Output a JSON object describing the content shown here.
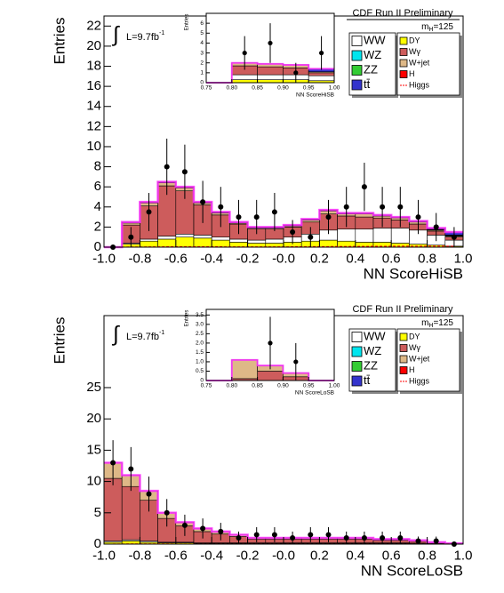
{
  "chart_data": [
    {
      "type": "histogram",
      "title": "CDF Run II Preliminary",
      "x_label": "NN ScoreHiSB",
      "y_label": "Entries",
      "lumi": {
        "integral": "∫",
        "main": "L=9.7fb",
        "sup": "-1"
      },
      "mass_label": {
        "main": "m",
        "sub": "H",
        "rest": "=125"
      },
      "bins": [
        -1,
        -0.9,
        -0.8,
        -0.7,
        -0.6,
        -0.5,
        -0.4,
        -0.3,
        -0.2,
        -0.1,
        0,
        0.1,
        0.2,
        0.3,
        0.4,
        0.5,
        0.6,
        0.7,
        0.8,
        0.9,
        1
      ],
      "xlim": [
        -1,
        1
      ],
      "ylim": [
        0,
        23
      ],
      "xticks": [
        {
          "value": -1,
          "label": "-1.0"
        },
        -0.8,
        -0.6,
        -0.4,
        -0.2,
        {
          "value": 0,
          "label": "-0.0"
        },
        0.2,
        0.4,
        0.6,
        0.8,
        {
          "value": 1,
          "label": "1.0"
        }
      ],
      "yticks": [
        0,
        2,
        4,
        6,
        8,
        10,
        12,
        14,
        16,
        18,
        20,
        22
      ],
      "stack_order": [
        4,
        0,
        5,
        6,
        1,
        2,
        3,
        7
      ],
      "series": [
        {
          "name": "WW",
          "color": "#ffffff",
          "values": [
            0,
            0.1,
            0.2,
            0.3,
            0.3,
            0.3,
            0.3,
            0.3,
            0.3,
            0.4,
            0.5,
            0.7,
            1.0,
            1.2,
            1.3,
            1.4,
            1.5,
            1.4,
            1.0,
            0.6
          ]
        },
        {
          "name": "WZ",
          "color": "#00e5ee",
          "values": [
            0,
            0.05,
            0.05,
            0.05,
            0.05,
            0.05,
            0.05,
            0.05,
            0.05,
            0.05,
            0.05,
            0.05,
            0.05,
            0.05,
            0.05,
            0.05,
            0.05,
            0.05,
            0.05,
            0.05
          ]
        },
        {
          "name": "ZZ",
          "color": "#33cc33",
          "values": [
            0,
            0.05,
            0.05,
            0.05,
            0.05,
            0.05,
            0.05,
            0.05,
            0.05,
            0.05,
            0.05,
            0.05,
            0.05,
            0.05,
            0.05,
            0.05,
            0.05,
            0.05,
            0.05,
            0.05
          ]
        },
        {
          "name": "tt̄",
          "color": "#3333cc",
          "values": [
            0,
            0,
            0,
            0,
            0,
            0,
            0,
            0,
            0,
            0,
            0,
            0,
            0,
            0,
            0,
            0,
            0,
            0,
            0.1,
            0.3
          ]
        },
        {
          "name": "DY",
          "color": "#ffff00",
          "values": [
            0,
            0.3,
            0.6,
            0.8,
            1.0,
            0.9,
            0.7,
            0.5,
            0.4,
            0.4,
            0.5,
            0.6,
            0.7,
            0.6,
            0.5,
            0.5,
            0.4,
            0.3,
            0.2,
            0.1
          ]
        },
        {
          "name": "Wγ",
          "color": "#cd5c5c",
          "values": [
            0,
            1.8,
            3.3,
            5.0,
            4.3,
            3.0,
            2.2,
            1.5,
            1.1,
            1.0,
            1.0,
            1.2,
            1.6,
            1.3,
            1.2,
            1.0,
            0.8,
            0.6,
            0.4,
            0.3
          ]
        },
        {
          "name": "W+jet",
          "color": "#deb887",
          "values": [
            0,
            0.2,
            0.3,
            0.3,
            0.3,
            0.2,
            0.2,
            0.1,
            0.1,
            0.1,
            0.1,
            0.2,
            0.3,
            0.2,
            0.3,
            0.2,
            0.2,
            0.2,
            0.1,
            0.1
          ]
        },
        {
          "name": "H",
          "color": "#ff0000",
          "values": [
            0,
            0,
            0,
            0,
            0,
            0,
            0,
            0,
            0,
            0,
            0,
            0,
            0,
            0,
            0,
            0,
            0,
            0,
            0,
            0
          ]
        },
        {
          "name": "Higgs",
          "color": "#ff0000",
          "stack": false,
          "values": [
            0,
            0.02,
            0.03,
            0.04,
            0.04,
            0.04,
            0.04,
            0.03,
            0.03,
            0.03,
            0.04,
            0.05,
            0.06,
            0.07,
            0.08,
            0.09,
            0.1,
            0.1,
            0.1,
            0.1
          ]
        }
      ],
      "points": {
        "values": [
          0,
          1,
          3.5,
          8,
          7.5,
          4.5,
          4,
          3,
          3,
          3.5,
          1.5,
          1,
          3,
          4,
          6,
          4,
          4,
          3,
          2,
          1
        ],
        "errors": [
          0,
          1,
          1.9,
          2.8,
          2.7,
          2.1,
          2,
          1.7,
          1.7,
          1.9,
          1.2,
          1,
          1.7,
          2,
          2.4,
          2,
          2,
          1.7,
          1.4,
          1
        ]
      },
      "inset": {
        "x_label": "NN ScoreHiSB",
        "y_label": "Entries",
        "bins": [
          0.75,
          0.8,
          0.85,
          0.9,
          0.95,
          1
        ],
        "xlim": [
          0.75,
          1
        ],
        "ylim": [
          0,
          7
        ],
        "xticks": [
          0.75,
          {
            "value": 0.8,
            "label": "0.80"
          },
          0.85,
          {
            "value": 0.9,
            "label": "0.90"
          },
          0.95,
          {
            "value": 1,
            "label": "1.00"
          }
        ],
        "yticks": [
          0,
          1,
          2,
          3,
          4,
          5,
          6
        ],
        "series": [
          {
            "color": "#ffff00",
            "values": [
              0,
              0.3,
              0.3,
              0.3,
              0.2
            ]
          },
          {
            "color": "#ffffff",
            "values": [
              0,
              0.5,
              0.5,
              0.5,
              0.5
            ]
          },
          {
            "color": "#cd5c5c",
            "values": [
              0,
              0.9,
              0.8,
              0.7,
              0.3
            ]
          },
          {
            "color": "#deb887",
            "values": [
              0,
              0.3,
              0.3,
              0.3,
              0.1
            ]
          },
          {
            "color": "#3333cc",
            "values": [
              0,
              0,
              0,
              0,
              0.3
            ]
          }
        ],
        "points": {
          "values": [
            null,
            3,
            4,
            1,
            3
          ],
          "errors": [
            null,
            1.7,
            2,
            1,
            1.7
          ]
        }
      }
    },
    {
      "type": "histogram",
      "title": "CDF Run II Preliminary",
      "x_label": "NN ScoreLoSB",
      "y_label": "Entries",
      "lumi": {
        "integral": "∫",
        "main": "L=9.7fb",
        "sup": "-1"
      },
      "mass_label": {
        "main": "m",
        "sub": "H",
        "rest": "=125"
      },
      "bins": [
        -1,
        -0.9,
        -0.8,
        -0.7,
        -0.6,
        -0.5,
        -0.4,
        -0.3,
        -0.2,
        -0.1,
        0,
        0.1,
        0.2,
        0.3,
        0.4,
        0.5,
        0.6,
        0.7,
        0.8,
        0.9,
        1
      ],
      "xlim": [
        -1,
        1
      ],
      "ylim": [
        0,
        36.5
      ],
      "xticks": [
        {
          "value": -1,
          "label": "-1.0"
        },
        -0.8,
        -0.6,
        -0.4,
        -0.2,
        {
          "value": 0,
          "label": "-0.0"
        },
        0.2,
        0.4,
        0.6,
        0.8,
        {
          "value": 1,
          "label": "1.0"
        }
      ],
      "yticks": [
        0,
        5,
        10,
        15,
        20,
        25
      ],
      "stack_order": [
        4,
        0,
        5,
        6,
        1,
        2,
        3,
        7
      ],
      "series": [
        {
          "name": "WW",
          "color": "#ffffff",
          "values": [
            0.2,
            0.2,
            0.2,
            0.1,
            0.1,
            0.1,
            0.1,
            0.1,
            0.1,
            0.1,
            0.1,
            0.1,
            0.1,
            0.1,
            0.1,
            0.1,
            0.1,
            0.1,
            0.05,
            0
          ]
        },
        {
          "name": "WZ",
          "color": "#00e5ee",
          "values": [
            0,
            0,
            0,
            0,
            0,
            0,
            0,
            0,
            0,
            0,
            0,
            0,
            0,
            0,
            0,
            0,
            0,
            0,
            0,
            0
          ]
        },
        {
          "name": "ZZ",
          "color": "#33cc33",
          "values": [
            0,
            0,
            0,
            0,
            0,
            0,
            0,
            0,
            0,
            0,
            0,
            0,
            0,
            0,
            0,
            0,
            0,
            0,
            0,
            0
          ]
        },
        {
          "name": "tt̄",
          "color": "#3333cc",
          "values": [
            0,
            0,
            0,
            0,
            0,
            0,
            0,
            0,
            0,
            0,
            0,
            0,
            0,
            0,
            0,
            0,
            0,
            0,
            0,
            0
          ]
        },
        {
          "name": "DY",
          "color": "#ffff00",
          "values": [
            0.3,
            0.5,
            0.3,
            0.2,
            0.2,
            0.1,
            0.1,
            0.1,
            0.1,
            0.1,
            0.1,
            0.1,
            0.1,
            0.1,
            0.1,
            0.1,
            0.1,
            0.05,
            0.05,
            0
          ]
        },
        {
          "name": "Wγ",
          "color": "#cd5c5c",
          "values": [
            10,
            8.5,
            6.5,
            3.8,
            2.6,
            1.8,
            1.4,
            1.0,
            0.6,
            0.6,
            0.6,
            0.6,
            0.6,
            0.6,
            0.6,
            0.4,
            0.4,
            0.3,
            0.1,
            0.05
          ]
        },
        {
          "name": "W+jet",
          "color": "#deb887",
          "values": [
            2.5,
            1.8,
            1.5,
            0.9,
            0.6,
            0.5,
            0.4,
            0.3,
            0.2,
            0.2,
            0.2,
            0.2,
            0.2,
            0.2,
            0.2,
            0.2,
            0.2,
            0.15,
            0.1,
            0.05
          ]
        },
        {
          "name": "H",
          "color": "#ff0000",
          "values": [
            0,
            0,
            0,
            0,
            0,
            0,
            0,
            0,
            0,
            0,
            0,
            0,
            0,
            0,
            0,
            0,
            0,
            0,
            0,
            0
          ]
        },
        {
          "name": "Higgs",
          "color": "#ff0000",
          "stack": false,
          "values": [
            0.02,
            0.03,
            0.03,
            0.03,
            0.02,
            0.02,
            0.02,
            0.02,
            0.02,
            0.02,
            0.02,
            0.02,
            0.02,
            0.02,
            0.02,
            0.02,
            0.02,
            0.02,
            0.02,
            0.02
          ]
        }
      ],
      "points": {
        "values": [
          13,
          12,
          8,
          5,
          3,
          2.5,
          2,
          1,
          1.5,
          1.5,
          1,
          1.5,
          1.5,
          1,
          1,
          1,
          1,
          0.5,
          0.5,
          0
        ],
        "errors": [
          3.6,
          3.5,
          2.8,
          2.2,
          1.7,
          1.6,
          1.4,
          1,
          1.2,
          1.2,
          1,
          1.2,
          1.2,
          1,
          1,
          1,
          1,
          0.7,
          0.7,
          0
        ]
      },
      "inset": {
        "x_label": "NN ScoreLoSB",
        "y_label": "Entries",
        "bins": [
          0.75,
          0.8,
          0.85,
          0.9,
          0.95,
          1
        ],
        "xlim": [
          0.75,
          1
        ],
        "ylim": [
          0,
          3.8
        ],
        "xticks": [
          0.75,
          {
            "value": 0.8,
            "label": "0.80"
          },
          0.85,
          {
            "value": 0.9,
            "label": "0.90"
          },
          0.95,
          {
            "value": 1,
            "label": "1.00"
          }
        ],
        "yticks": [
          0,
          0.5,
          {
            "value": 1,
            "label": "1.0"
          },
          1.5,
          {
            "value": 2,
            "label": "2.0"
          },
          2.5,
          {
            "value": 3,
            "label": "3.0"
          },
          3.5
        ],
        "series": [
          {
            "color": "#cd5c5c",
            "values": [
              0,
              0.1,
              0.5,
              0.2,
              0
            ]
          },
          {
            "color": "#deb887",
            "values": [
              0,
              1.0,
              0.3,
              0.2,
              0
            ]
          }
        ],
        "points": {
          "values": [
            null,
            null,
            2,
            1,
            null
          ],
          "errors": [
            null,
            null,
            1.4,
            1,
            null
          ]
        }
      }
    }
  ]
}
